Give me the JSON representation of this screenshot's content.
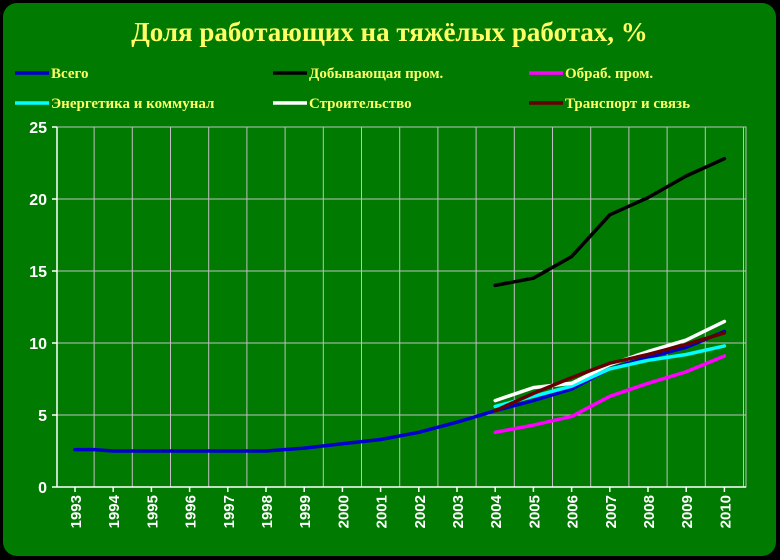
{
  "chart_data": {
    "type": "line",
    "title": "Доля работающих на тяжёлых работах, %",
    "xlabel": "",
    "ylabel": "",
    "ylim": [
      0,
      25
    ],
    "yticks": [
      "0",
      "5",
      "10",
      "15",
      "20",
      "25"
    ],
    "categories": [
      "1993",
      "1994",
      "1995",
      "1996",
      "1997",
      "1998",
      "1999",
      "2000",
      "2001",
      "2002",
      "2003",
      "2004",
      "2005",
      "2006",
      "2007",
      "2008",
      "2009",
      "2010"
    ],
    "grid": true,
    "legend_position": "top",
    "series": [
      {
        "name": "Всего",
        "color": "#0000cc",
        "points": [
          [
            1993,
            2.6
          ],
          [
            1993.5,
            2.6
          ],
          [
            1994,
            2.5
          ],
          [
            1995,
            2.5
          ],
          [
            1996,
            2.5
          ],
          [
            1997,
            2.5
          ],
          [
            1998,
            2.5
          ],
          [
            1999,
            2.7
          ],
          [
            2000,
            3.0
          ],
          [
            2001,
            3.3
          ],
          [
            2002,
            3.8
          ],
          [
            2003,
            4.5
          ],
          [
            2004,
            5.3
          ],
          [
            2005,
            6.0
          ],
          [
            2006,
            6.8
          ],
          [
            2007,
            8.2
          ],
          [
            2008,
            9.0
          ],
          [
            2009,
            9.7
          ],
          [
            2010,
            10.8
          ]
        ]
      },
      {
        "name": "Добывающая пром.",
        "color": "#000000",
        "points": [
          [
            2004,
            14.0
          ],
          [
            2005,
            14.5
          ],
          [
            2006,
            16.0
          ],
          [
            2007,
            18.9
          ],
          [
            2008,
            20.1
          ],
          [
            2009,
            21.6
          ],
          [
            2010,
            22.8
          ]
        ]
      },
      {
        "name": "Обраб. пром.",
        "color": "#ff00ff",
        "points": [
          [
            2004,
            3.8
          ],
          [
            2005,
            4.3
          ],
          [
            2006,
            4.9
          ],
          [
            2007,
            6.3
          ],
          [
            2008,
            7.2
          ],
          [
            2009,
            8.0
          ],
          [
            2010,
            9.1
          ]
        ]
      },
      {
        "name": "Энергетика и коммунал",
        "color": "#00ffff",
        "points": [
          [
            2004,
            5.6
          ],
          [
            2005,
            6.3
          ],
          [
            2006,
            7.0
          ],
          [
            2007,
            8.2
          ],
          [
            2008,
            8.8
          ],
          [
            2009,
            9.2
          ],
          [
            2010,
            9.8
          ]
        ]
      },
      {
        "name": "Строительство",
        "color": "#ffffff",
        "points": [
          [
            2004,
            6.0
          ],
          [
            2005,
            6.9
          ],
          [
            2006,
            7.2
          ],
          [
            2007,
            8.5
          ],
          [
            2008,
            9.4
          ],
          [
            2009,
            10.2
          ],
          [
            2010,
            11.5
          ]
        ]
      },
      {
        "name": "Транспорт и связь",
        "color": "#660000",
        "points": [
          [
            2004,
            5.3
          ],
          [
            2005,
            6.5
          ],
          [
            2006,
            7.6
          ],
          [
            2007,
            8.6
          ],
          [
            2008,
            9.2
          ],
          [
            2009,
            9.9
          ],
          [
            2010,
            10.7
          ]
        ]
      }
    ]
  },
  "colors": {
    "background": "#007a00",
    "outer": "#000000",
    "title": "#ffff66",
    "grid": "#c0c0c0",
    "axis": "#ffffff"
  }
}
